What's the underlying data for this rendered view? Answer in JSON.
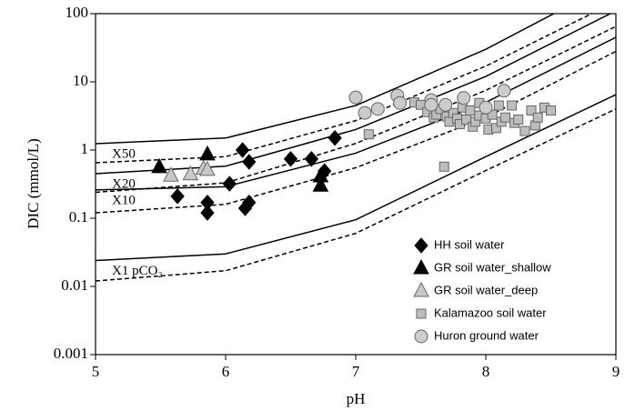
{
  "chart_data": {
    "type": "scatter",
    "xlabel": "pH",
    "ylabel": "DIC (mmol/L)",
    "xlim": [
      5,
      9
    ],
    "xticks": [
      5,
      6,
      7,
      8,
      9
    ],
    "ylim": [
      0.001,
      100
    ],
    "yticks": [
      0.001,
      0.01,
      0.1,
      1,
      10,
      100
    ],
    "log_y": true,
    "legend": "lower right",
    "line_x": [
      5,
      6,
      7,
      8,
      9
    ],
    "reference_lines": [
      {
        "label": "X50",
        "style": "solid",
        "values": [
          1.24,
          1.5,
          4.5,
          30,
          300
        ]
      },
      {
        "style": "dashed",
        "values": [
          0.65,
          0.8,
          2.7,
          17,
          150
        ]
      },
      {
        "label": "X20",
        "style": "solid",
        "values": [
          0.45,
          0.58,
          2.0,
          12,
          110
        ]
      },
      {
        "style": "dashed",
        "values": [
          0.24,
          0.33,
          1.25,
          7.5,
          65
        ]
      },
      {
        "label": "X10",
        "style": "solid",
        "values": [
          0.26,
          0.29,
          0.9,
          5,
          45
        ]
      },
      {
        "style": "dashed",
        "values": [
          0.12,
          0.16,
          0.55,
          3,
          28
        ]
      },
      {
        "label": "X1 pCO₂",
        "style": "solid",
        "values": [
          0.024,
          0.03,
          0.095,
          0.8,
          6.5
        ]
      },
      {
        "style": "dashed",
        "values": [
          0.012,
          0.017,
          0.06,
          0.5,
          4
        ]
      }
    ],
    "series": [
      {
        "name": "HH soil water",
        "marker": "diamond",
        "color": "#000000",
        "x": [
          5.63,
          5.86,
          5.86,
          6.03,
          6.13,
          6.18,
          6.15,
          6.18,
          6.5,
          6.66,
          6.76,
          6.84
        ],
        "values": [
          0.21,
          0.17,
          0.12,
          0.32,
          1.0,
          0.67,
          0.14,
          0.17,
          0.74,
          0.74,
          0.49,
          1.5
        ]
      },
      {
        "name": "GR soil water_shallow",
        "marker": "triangle",
        "color": "#000000",
        "x": [
          5.49,
          5.86,
          6.73,
          6.73
        ],
        "values": [
          0.56,
          0.86,
          0.3,
          0.41
        ]
      },
      {
        "name": "GR soil water_deep",
        "marker": "triangle",
        "color": "#c8c8c8",
        "x": [
          5.58,
          5.73,
          5.83,
          5.86
        ],
        "values": [
          0.42,
          0.44,
          0.53,
          0.51
        ]
      },
      {
        "name": "Kalamazoo soil water",
        "marker": "square",
        "color": "#bdbdbd",
        "x": [
          7.1,
          7.68,
          7.45,
          7.5,
          7.55,
          7.6,
          7.62,
          7.65,
          7.7,
          7.72,
          7.75,
          7.78,
          7.8,
          7.82,
          7.85,
          7.88,
          7.9,
          7.92,
          7.95,
          8.0,
          8.02,
          8.05,
          8.08,
          8.1,
          8.12,
          8.15,
          8.2,
          8.22,
          8.25,
          8.3,
          8.35,
          8.38,
          8.4,
          8.45,
          8.5,
          7.95
        ],
        "values": [
          1.7,
          0.57,
          5.0,
          4.6,
          3.6,
          3.0,
          3.3,
          4.0,
          3.1,
          2.6,
          3.5,
          2.9,
          2.4,
          4.2,
          2.8,
          3.8,
          2.2,
          2.6,
          3.2,
          2.9,
          2.0,
          3.3,
          2.1,
          4.5,
          2.6,
          3.0,
          4.5,
          2.5,
          2.8,
          1.9,
          3.8,
          2.3,
          3.0,
          4.2,
          3.8,
          4.9
        ]
      },
      {
        "name": "Huron ground water",
        "marker": "circle",
        "color": "#cccccc",
        "x": [
          7.0,
          7.07,
          7.17,
          7.32,
          7.34,
          7.58,
          7.58,
          7.69,
          7.83,
          8.0,
          8.14
        ],
        "values": [
          5.9,
          3.5,
          4.0,
          6.3,
          4.9,
          5.4,
          4.6,
          4.6,
          5.8,
          4.2,
          7.4
        ]
      }
    ]
  }
}
